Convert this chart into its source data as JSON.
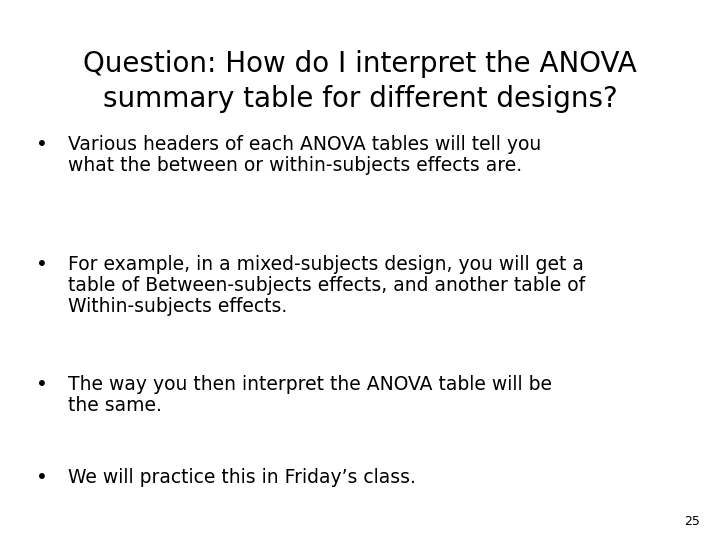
{
  "title_line1": "Question: How do I interpret the ANOVA",
  "title_line2": "summary table for different designs?",
  "bullets": [
    {
      "lines": [
        "Various headers of each ANOVA tables will tell you",
        "what the between or within-subjects effects are."
      ]
    },
    {
      "lines": [
        "For example, in a mixed-subjects design, you will get a",
        "table of Between-subjects effects, and another table of",
        "Within-subjects effects."
      ]
    },
    {
      "lines": [
        "The way you then interpret the ANOVA table will be",
        "the same."
      ]
    },
    {
      "lines": [
        "We will practice this in Friday’s class."
      ]
    }
  ],
  "page_number": "25",
  "background_color": "#ffffff",
  "title_fontsize": 20,
  "bullet_fontsize": 13.5,
  "page_num_fontsize": 9,
  "title_color": "#000000",
  "bullet_color": "#000000",
  "font_family": "DejaVu Sans"
}
